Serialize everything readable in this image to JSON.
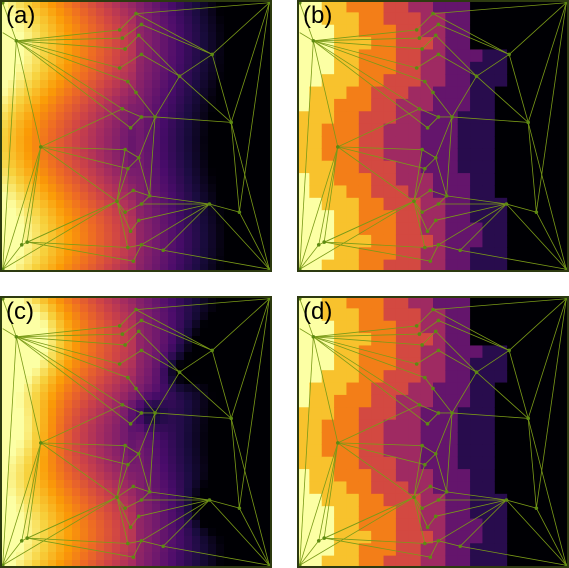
{
  "panels": [
    {
      "label": "(a)",
      "style": "smooth-interpolation"
    },
    {
      "label": "(b)",
      "style": "piecewise-constant"
    },
    {
      "label": "(c)",
      "style": "radial-basis"
    },
    {
      "label": "(d)",
      "style": "piecewise-constant"
    }
  ],
  "colors": {
    "mesh": "#7a9a18",
    "node": "#5d8a12",
    "frame": "#2d3a10",
    "colormap": [
      "#000004",
      "#1b0c41",
      "#4a0c6b",
      "#781c6d",
      "#a52c60",
      "#cf4446",
      "#ed6925",
      "#fb9b06",
      "#f7d13d",
      "#fcffa4"
    ]
  }
}
